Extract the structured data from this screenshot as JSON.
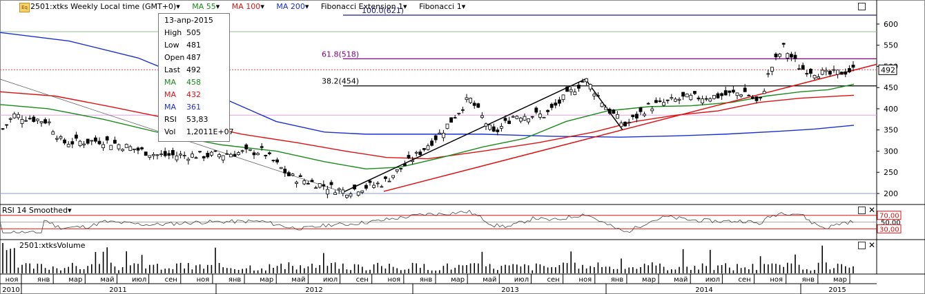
{
  "header": {
    "symbol_label": "2501:xtks Weekly Local time (GMT+0)",
    "ma55_label": "MA 55",
    "ma100_label": "MA 100",
    "ma200_label": "MA 200",
    "fibext_label": "Fibonacci Extension 1",
    "fib_label": "Fibonacci 1",
    "icon": "eq-icon",
    "arrow": "▾"
  },
  "colors": {
    "up": "#ffffff",
    "down": "#000000",
    "ma55": "#1a8a1a",
    "ma100": "#e01010",
    "ma200": "#1a2fd0",
    "fib": "#800080",
    "fibline": "#1a1a8a",
    "ref": "#e05050"
  },
  "info_box": {
    "date": "13-апр-2015",
    "rows": [
      {
        "k": "High",
        "v": "505"
      },
      {
        "k": "Low",
        "v": "481"
      },
      {
        "k": "Open",
        "v": "487"
      },
      {
        "k": "Last",
        "v": "492"
      },
      {
        "k": "MA",
        "v": "458"
      },
      {
        "k": "MA",
        "v": "432"
      },
      {
        "k": "MA",
        "v": "361"
      },
      {
        "k": "RSI",
        "v": "53,83"
      },
      {
        "k": "Vol",
        "v": "1,2011E+07"
      }
    ]
  },
  "chart_data": {
    "type": "candlestick",
    "timeframe": "Weekly",
    "price_axis": {
      "ticks": [
        200,
        250,
        300,
        350,
        400,
        450,
        500,
        550,
        600
      ],
      "ylim": [
        180,
        640
      ],
      "last_price": "492"
    },
    "x_month_labels": [
      "ноя",
      "янв",
      "мар",
      "май",
      "июл",
      "сен",
      "ноя",
      "янв",
      "мар",
      "май",
      "июл",
      "сен",
      "ноя",
      "янв",
      "мар",
      "май",
      "июл",
      "сен",
      "ноя",
      "янв",
      "мар",
      "май",
      "июл",
      "сен",
      "ноя",
      "янв",
      "мар"
    ],
    "x_year_labels": [
      "2010",
      "2011",
      "2012",
      "2013",
      "2014",
      "2015"
    ],
    "fib_levels": [
      {
        "label": "100.0(621)",
        "value": 621
      },
      {
        "label": "61.8(518)",
        "value": 518
      },
      {
        "label": "38.2(454)",
        "value": 454
      }
    ],
    "horizontal_refs": [
      492,
      200,
      385,
      582
    ],
    "rsi": {
      "title": "RSI 14 Smoothed",
      "levels": [
        "70,00",
        "50,00",
        "30,00"
      ],
      "last": 53.83
    },
    "volume": {
      "title": "2501:xtksVolume",
      "last": "1,2011E+07"
    }
  }
}
